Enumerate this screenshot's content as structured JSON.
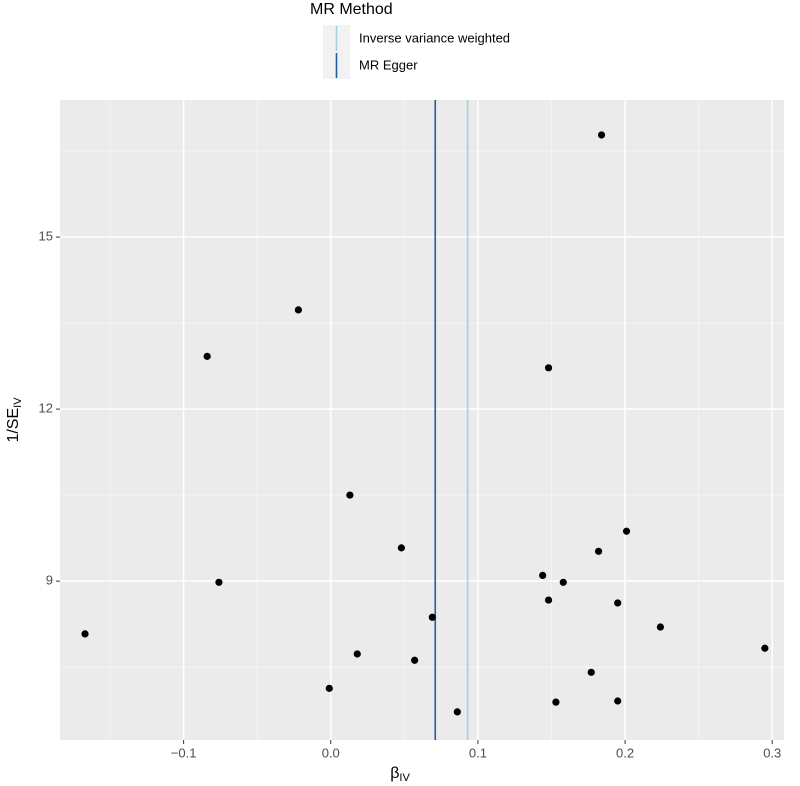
{
  "chart_data": {
    "type": "scatter",
    "legend_title": "MR Method",
    "xlabel": "β",
    "xlabel_sub": "IV",
    "ylabel": "1/SE",
    "ylabel_sub": "IV",
    "x": [
      0.184,
      -0.022,
      -0.084,
      0.148,
      0.013,
      0.201,
      0.048,
      0.182,
      0.144,
      -0.076,
      0.158,
      0.148,
      0.195,
      0.069,
      0.224,
      -0.167,
      0.295,
      0.018,
      0.057,
      0.177,
      -0.001,
      0.153,
      0.195,
      0.086
    ],
    "values": [
      16.78,
      13.73,
      12.92,
      12.72,
      10.5,
      9.87,
      9.58,
      9.52,
      9.1,
      8.98,
      8.98,
      8.67,
      8.62,
      8.37,
      8.2,
      8.08,
      7.83,
      7.73,
      7.62,
      7.41,
      7.13,
      6.89,
      6.91,
      6.72
    ],
    "color": "#000000",
    "lines": [
      {
        "name": "Inverse variance weighted",
        "color": "#a6cee3",
        "x": 0.093
      },
      {
        "name": "MR Egger",
        "color": "#1f5fa8",
        "x": 0.071
      }
    ],
    "xlim": [
      -0.184,
      0.308
    ],
    "ylim": [
      6.23,
      17.39
    ],
    "xticks": [
      {
        "value": -0.1,
        "label": "−0.1"
      },
      {
        "value": 0,
        "label": "0.0"
      },
      0.1,
      0.2,
      0.3
    ],
    "yticks": [
      9,
      12,
      15
    ],
    "grid": true
  }
}
